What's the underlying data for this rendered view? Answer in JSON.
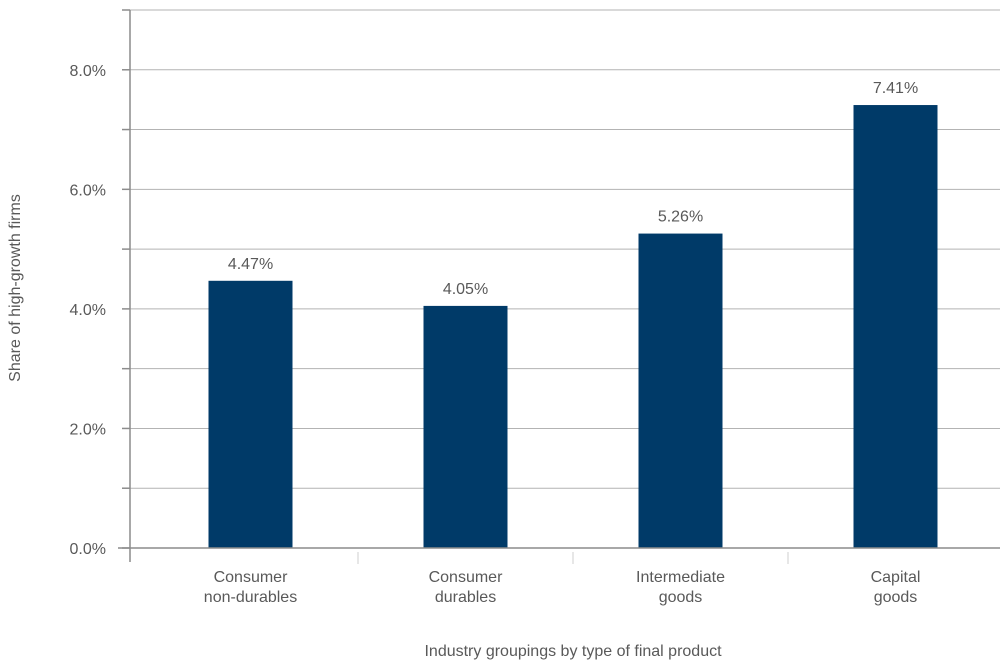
{
  "chart_data": {
    "type": "bar",
    "categories": [
      [
        "Consumer",
        "non-durables"
      ],
      [
        "Consumer",
        "durables"
      ],
      [
        "Intermediate",
        "goods"
      ],
      [
        "Capital",
        "goods"
      ]
    ],
    "values": [
      4.47,
      4.05,
      5.26,
      7.41
    ],
    "data_labels": [
      "4.47%",
      "4.05%",
      "5.26%",
      "7.41%"
    ],
    "xlabel": "Industry groupings by type of final product",
    "ylabel": "Share of high-growth firms",
    "ylim": [
      0,
      9
    ],
    "y_ticks": [
      0,
      2,
      4,
      6,
      8
    ],
    "y_tick_labels": [
      "0.0%",
      "2.0%",
      "4.0%",
      "6.0%",
      "8.0%"
    ],
    "grid": true,
    "bar_color": "#003a68"
  }
}
